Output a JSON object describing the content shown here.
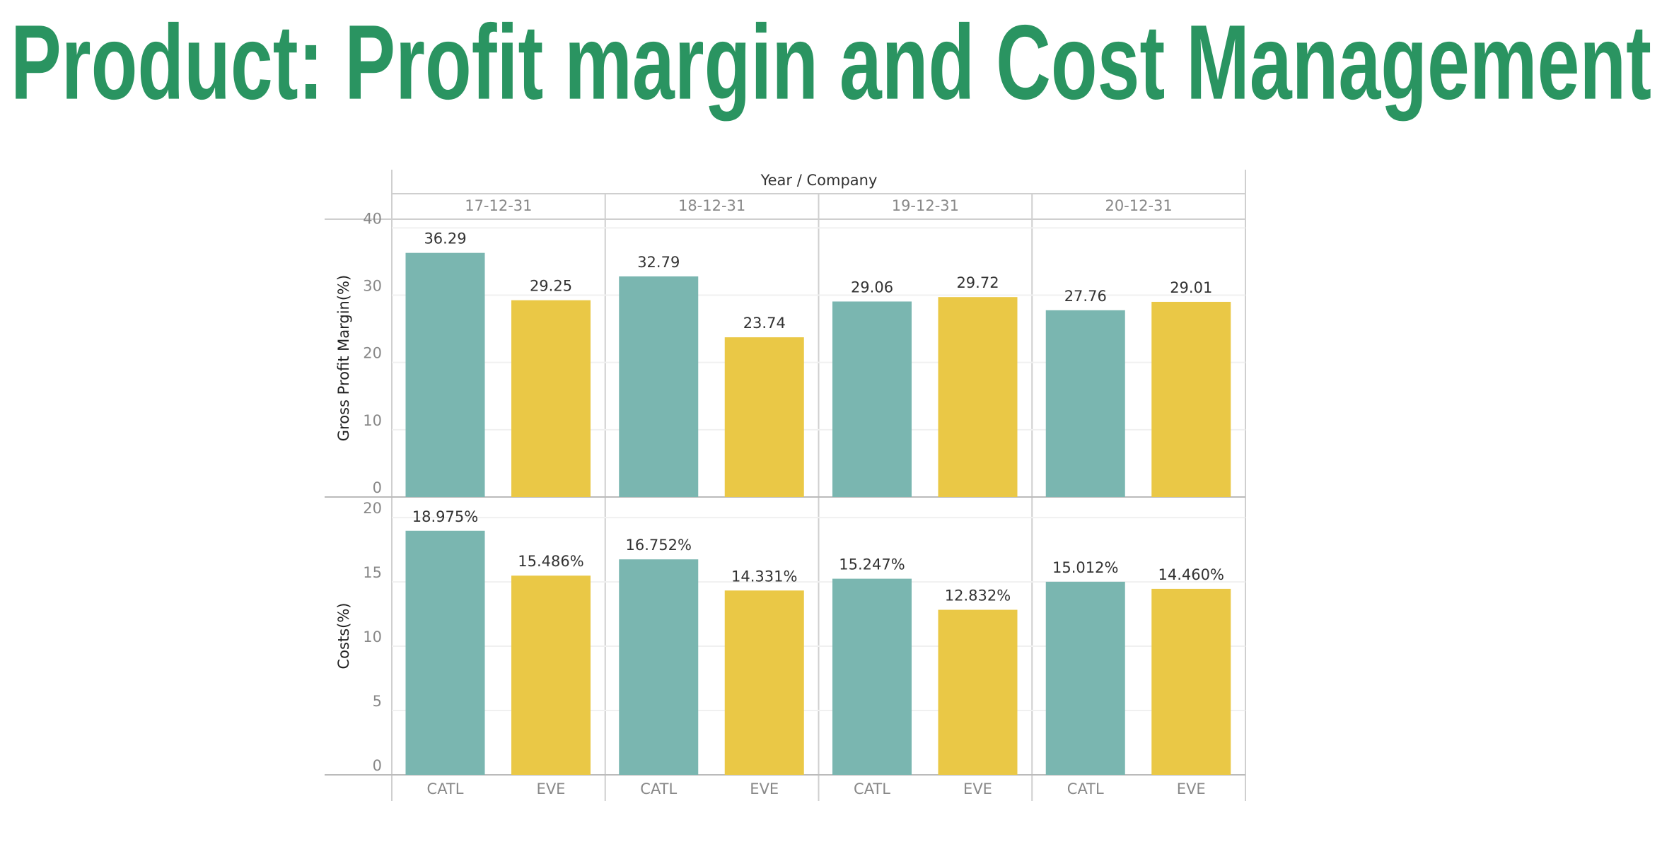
{
  "title": "Product: Profit margin and Cost Management",
  "chart_data": [
    {
      "type": "bar",
      "x_label": "Year / Company",
      "y_label": "Gross Profit Margin(%)",
      "categories": [
        "17-12-31",
        "18-12-31",
        "19-12-31",
        "20-12-31"
      ],
      "series": [
        {
          "name": "CATL",
          "color": "#7ab6b0",
          "values": [
            36.29,
            32.79,
            29.06,
            27.76
          ]
        },
        {
          "name": "EVE",
          "color": "#eac846",
          "values": [
            29.25,
            23.74,
            29.72,
            29.01
          ]
        }
      ],
      "ylim": [
        0,
        41.3
      ],
      "yticks": [
        0,
        10,
        20,
        30,
        40
      ],
      "grid": true
    },
    {
      "type": "bar",
      "y_label": "Costs(%)",
      "categories": [
        "17-12-31",
        "18-12-31",
        "19-12-31",
        "20-12-31"
      ],
      "series": [
        {
          "name": "CATL",
          "color": "#7ab6b0",
          "values": [
            18.975,
            16.752,
            15.247,
            15.012
          ],
          "value_labels": [
            "18.975%",
            "16.752%",
            "15.247%",
            "15.012%"
          ]
        },
        {
          "name": "EVE",
          "color": "#eac846",
          "values": [
            15.486,
            14.331,
            12.832,
            14.46
          ],
          "value_labels": [
            "15.486%",
            "14.331%",
            "12.832%",
            "14.460%"
          ]
        }
      ],
      "ylim": [
        0,
        21.6
      ],
      "yticks": [
        0,
        5,
        10,
        15,
        20
      ],
      "grid": true
    }
  ]
}
